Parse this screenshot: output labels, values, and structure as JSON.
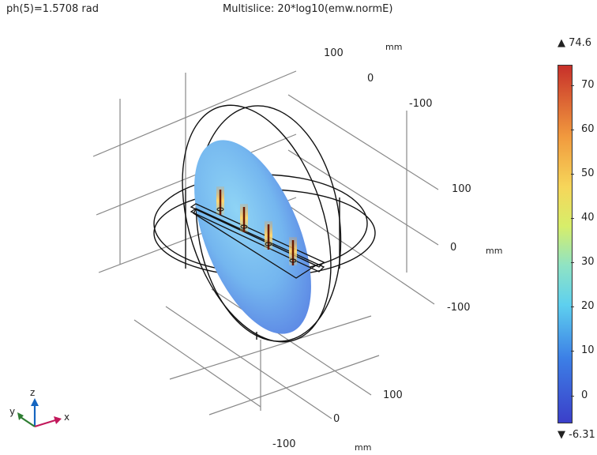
{
  "header": {
    "parameter": "ph(5)=1.5708 rad",
    "title": "Multislice: 20*log10(emw.normE)"
  },
  "axes": {
    "x_ticks": [
      "100",
      "0",
      "-100"
    ],
    "y_ticks": [
      "100",
      "0",
      "-100"
    ],
    "z_ticks": [
      "100",
      "0",
      "-100"
    ],
    "unit_top": "mm",
    "unit_right": "mm",
    "unit_bottom": "mm"
  },
  "triad": {
    "x": "x",
    "y": "y",
    "z": "z",
    "colors": {
      "x": "#c2185b",
      "y": "#2e7d32",
      "z": "#1565c0"
    }
  },
  "colorbar": {
    "max_label": "▲ 74.6",
    "min_label": "▼ -6.31",
    "ticks": [
      "70",
      "60",
      "50",
      "40",
      "30",
      "20",
      "10",
      "0"
    ],
    "min": -6.31,
    "max": 74.6,
    "colormap": "rainbow"
  }
}
